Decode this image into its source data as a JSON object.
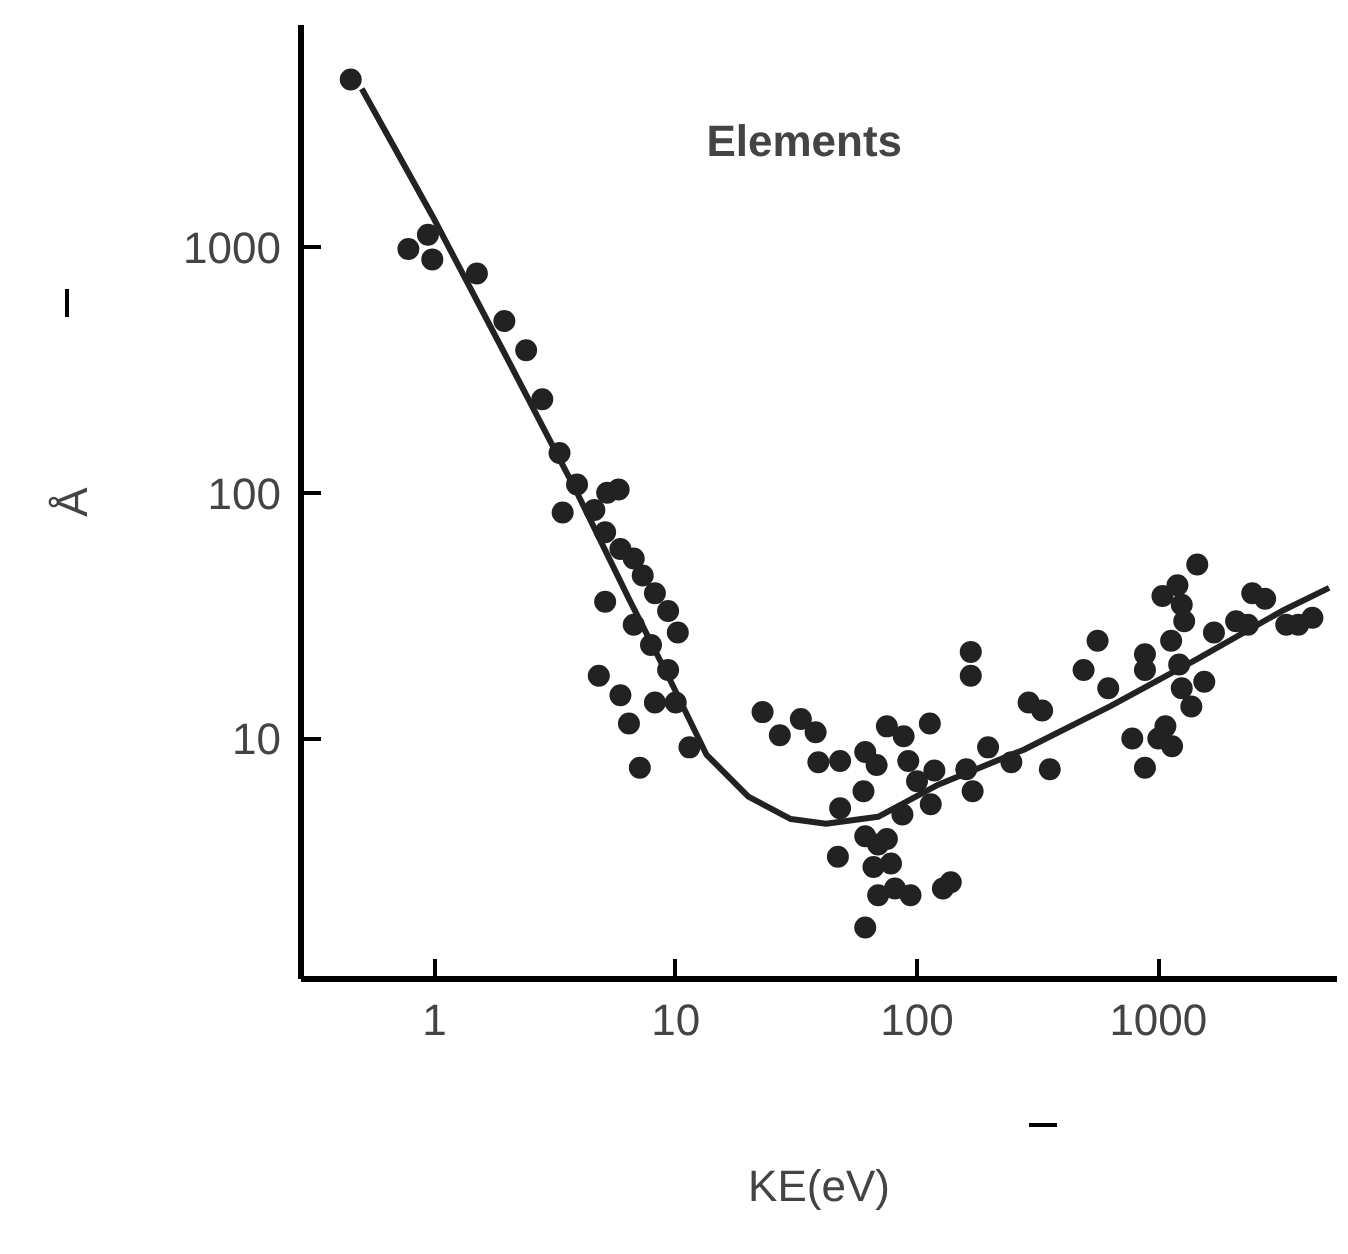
{
  "chart_data": {
    "type": "scatter",
    "xlabel": "KE(eV)",
    "ylabel": "Å",
    "annotations": [
      "Elements"
    ],
    "log": "xy",
    "grid": false,
    "xlim": [
      0.28,
      5500
    ],
    "ylim": [
      1.05,
      8000
    ],
    "xticks": [
      1,
      10,
      100,
      1000
    ],
    "yticks": [
      10,
      100,
      1000
    ],
    "series": [
      {
        "marker": "circle",
        "color": "#222222",
        "x": [
          0.45,
          0.78,
          0.94,
          0.98,
          1.5,
          1.95,
          2.4,
          2.8,
          3.3,
          3.9,
          3.4,
          4.6,
          5.2,
          5.8,
          5.1,
          5.9,
          6.7,
          7.3,
          8.2,
          9.3,
          10.2,
          5.1,
          6.7,
          7.9,
          9.3,
          4.8,
          5.9,
          6.4,
          7.1,
          8.2,
          10,
          11.4,
          22.9,
          27,
          33,
          38,
          39,
          48,
          48,
          47,
          61,
          68,
          60,
          61,
          69,
          75,
          66,
          78,
          69,
          81,
          94,
          61,
          75,
          88,
          92,
          87,
          100,
          113,
          118,
          114,
          128,
          138,
          167,
          167,
          160,
          170,
          197,
          246,
          290,
          330,
          355,
          490,
          560,
          620,
          880,
          880,
          780,
          880,
          1000,
          1070,
          1140,
          1040,
          1200,
          1250,
          1130,
          1220,
          1250,
          1370,
          1450,
          1280,
          1550,
          1700,
          2100,
          2450,
          2770,
          2350,
          3390,
          3800,
          4350
        ],
        "values": [
          4800,
          980,
          1120,
          890,
          780,
          500,
          380,
          240,
          145,
          108,
          83,
          85,
          100,
          103,
          69,
          59,
          54,
          46,
          39,
          33,
          27,
          36,
          29,
          24,
          19,
          18,
          15,
          11.5,
          7.6,
          14,
          14,
          9.2,
          12.8,
          10.3,
          12,
          10.6,
          8,
          8.1,
          5.2,
          3.3,
          8.8,
          7.8,
          6.1,
          4,
          3.7,
          3.9,
          3.0,
          3.1,
          2.3,
          2.45,
          2.3,
          1.7,
          11.2,
          10.2,
          8.1,
          4.9,
          6.7,
          11.5,
          7.4,
          5.4,
          2.45,
          2.6,
          22.5,
          18,
          7.5,
          6.1,
          9.2,
          8,
          14,
          13,
          7.5,
          19,
          25,
          16,
          22,
          19,
          10,
          7.6,
          10,
          11.2,
          9.3,
          38,
          42,
          35,
          25,
          20,
          16,
          13.5,
          51,
          30,
          17,
          27,
          30,
          39,
          37,
          29,
          29,
          29,
          31
        ]
      },
      {
        "type": "line",
        "color": "#222222",
        "x": [
          0.5,
          0.98,
          2.04,
          3.9,
          6.4,
          9.7,
          13.4,
          20,
          30,
          42,
          69,
          123,
          277,
          630,
          1440,
          3250,
          5100
        ],
        "values": [
          4400,
          1340,
          340,
          100,
          37,
          16.5,
          8.6,
          5.8,
          4.7,
          4.5,
          4.8,
          6.5,
          9,
          13.5,
          21,
          33,
          41
        ]
      }
    ]
  }
}
